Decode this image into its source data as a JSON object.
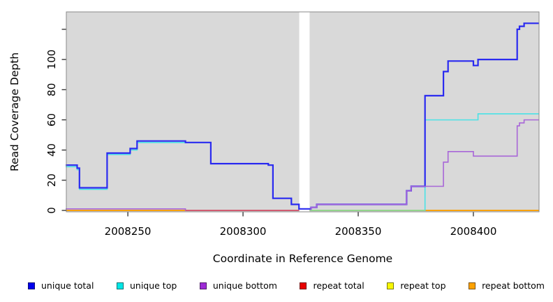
{
  "chart_data": {
    "type": "line",
    "subtype": "step-coverage-plot",
    "title": "",
    "x_axis": {
      "label": "Coordinate in Reference Genome",
      "ticks": [
        2008250,
        2008300,
        2008350,
        2008400
      ],
      "min": 2008223.3,
      "max": 2008428.5
    },
    "y_axis": {
      "label": "Read Coverage Depth",
      "ticks": [
        0,
        20,
        40,
        60,
        80,
        100
      ],
      "extra_unlabeled_tick": 120,
      "min": -0.93,
      "max": 131.55
    },
    "plot_bg": "#d9d9d9",
    "grid": "off",
    "gap_band": {
      "from": 2008324.4,
      "to": 2008328.9,
      "color": "#ffffff"
    },
    "series": [
      {
        "name": "repeat total",
        "color": "#dd1111",
        "width": 1.5,
        "clip": true,
        "points": [
          [
            2008223,
            0
          ]
        ]
      },
      {
        "name": "repeat top",
        "color": "#f0e500",
        "width": 1.5,
        "clip": true,
        "points": [
          [
            2008223,
            0
          ]
        ]
      },
      {
        "name": "repeat bottom",
        "color": "#ff9f00",
        "width": 1.6,
        "clip": true,
        "points": [
          [
            2008223,
            0
          ]
        ]
      },
      {
        "name": "unique top",
        "color": "#4ae2e6",
        "width": 1.6,
        "clip": true,
        "points": [
          [
            2008223,
            29
          ],
          [
            2008228,
            27
          ],
          [
            2008229,
            14
          ],
          [
            2008241,
            37
          ],
          [
            2008251,
            40
          ],
          [
            2008254,
            45
          ],
          [
            2008275,
            45
          ],
          [
            2008286,
            31
          ],
          [
            2008311,
            30
          ],
          [
            2008313,
            8
          ],
          [
            2008321,
            4
          ],
          [
            2008324.3,
            0
          ],
          [
            2008379,
            60
          ],
          [
            2008402,
            64
          ]
        ]
      },
      {
        "name": "unique total",
        "color": "#2a2af0",
        "width": 2.2,
        "clip": false,
        "points": [
          [
            2008223,
            30
          ],
          [
            2008228,
            28
          ],
          [
            2008229,
            15
          ],
          [
            2008241,
            38
          ],
          [
            2008251,
            41
          ],
          [
            2008254,
            46
          ],
          [
            2008275,
            45
          ],
          [
            2008286,
            31
          ],
          [
            2008311,
            30
          ],
          [
            2008313,
            8
          ],
          [
            2008321,
            4
          ],
          [
            2008324.3,
            1
          ],
          [
            2008329.5,
            2
          ],
          [
            2008332,
            4
          ],
          [
            2008371,
            13
          ],
          [
            2008373,
            16
          ],
          [
            2008379,
            76
          ],
          [
            2008387,
            92
          ],
          [
            2008389,
            99
          ],
          [
            2008400,
            96
          ],
          [
            2008402,
            100
          ],
          [
            2008419,
            120
          ],
          [
            2008420,
            122
          ],
          [
            2008422,
            124
          ]
        ]
      },
      {
        "name": "unique bottom",
        "color": "#a866d8",
        "width": 1.6,
        "clip": true,
        "points": [
          [
            2008223,
            1
          ],
          [
            2008275,
            0
          ],
          [
            2008329.5,
            2
          ],
          [
            2008332,
            4
          ],
          [
            2008371,
            13
          ],
          [
            2008373,
            16
          ],
          [
            2008387,
            32
          ],
          [
            2008389,
            39
          ],
          [
            2008400,
            36
          ],
          [
            2008419,
            56
          ],
          [
            2008420,
            58
          ],
          [
            2008422,
            60
          ]
        ]
      }
    ],
    "baseline_overlays": [
      {
        "color": "#d24f6e",
        "from": 2008275,
        "to": 2008324.4
      },
      {
        "color": "#8fd98f",
        "from": 2008328.9,
        "to": 2008379
      }
    ]
  },
  "legend": {
    "items": [
      {
        "label": "unique total",
        "color": "#0000ee"
      },
      {
        "label": "unique top",
        "color": "#00e6e6"
      },
      {
        "label": "unique bottom",
        "color": "#9d2bd6"
      },
      {
        "label": "repeat total",
        "color": "#e80000"
      },
      {
        "label": "repeat top",
        "color": "#f7f700"
      },
      {
        "label": "repeat bottom",
        "color": "#ffa200"
      }
    ]
  }
}
